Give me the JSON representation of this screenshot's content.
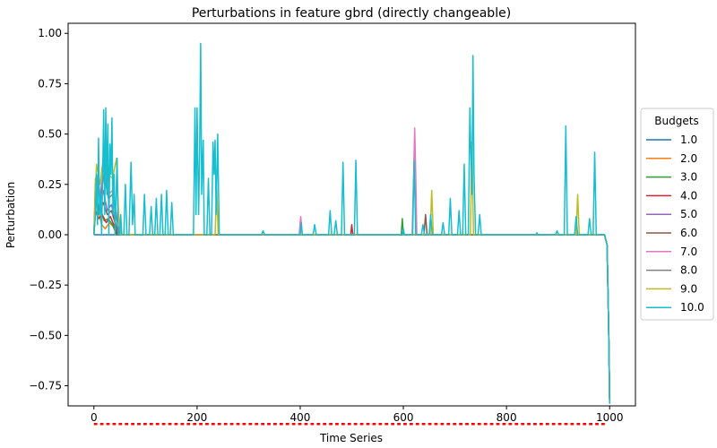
{
  "chart_data": {
    "type": "line",
    "title": "Perturbations in feature gbrd (directly changeable)",
    "xlabel": "Time Series",
    "ylabel": "Perturbation",
    "xlim": [
      -50,
      1050
    ],
    "ylim": [
      -0.85,
      1.05
    ],
    "xticks": [
      0,
      200,
      400,
      600,
      800,
      1000
    ],
    "yticks": [
      -0.75,
      -0.5,
      -0.25,
      0.0,
      0.25,
      0.5,
      0.75,
      1.0
    ],
    "ytick_labels": [
      "−0.75",
      "−0.50",
      "−0.25",
      "0.00",
      "0.25",
      "0.50",
      "0.75",
      "1.00"
    ],
    "legend": {
      "title": "Budgets",
      "placement": "outside-right"
    },
    "baseline_markers": {
      "color": "#ff0000",
      "y": -0.94,
      "x_start": 0,
      "x_end": 990,
      "step": 12
    },
    "series": [
      {
        "name": "1.0",
        "color": "#1f77b4",
        "points": [
          [
            0,
            0
          ],
          [
            990,
            0
          ],
          [
            995,
            -0.05
          ],
          [
            998,
            -0.45
          ],
          [
            1000,
            -0.82
          ]
        ]
      },
      {
        "name": "2.0",
        "color": "#ff7f0e",
        "points": [
          [
            0,
            0
          ],
          [
            3,
            0.28
          ],
          [
            8,
            0.12
          ],
          [
            15,
            0.05
          ],
          [
            22,
            0.03
          ],
          [
            30,
            0.06
          ],
          [
            38,
            0.04
          ],
          [
            45,
            0
          ],
          [
            990,
            0
          ],
          [
            995,
            -0.05
          ],
          [
            998,
            -0.45
          ],
          [
            1000,
            -0.82
          ]
        ]
      },
      {
        "name": "3.0",
        "color": "#2ca02c",
        "points": [
          [
            0,
            0
          ],
          [
            3,
            0.22
          ],
          [
            8,
            0.1
          ],
          [
            14,
            0.12
          ],
          [
            20,
            0.07
          ],
          [
            28,
            0.08
          ],
          [
            36,
            0.05
          ],
          [
            44,
            0
          ],
          [
            596,
            0
          ],
          [
            598,
            0.08
          ],
          [
            600,
            0
          ],
          [
            990,
            0
          ],
          [
            995,
            -0.05
          ],
          [
            998,
            -0.45
          ],
          [
            1000,
            -0.82
          ]
        ]
      },
      {
        "name": "4.0",
        "color": "#d62728",
        "points": [
          [
            0,
            0
          ],
          [
            3,
            0.12
          ],
          [
            9,
            0.08
          ],
          [
            16,
            0.1
          ],
          [
            24,
            0.06
          ],
          [
            32,
            0.09
          ],
          [
            40,
            0.04
          ],
          [
            46,
            0
          ],
          [
            498,
            0
          ],
          [
            500,
            0.05
          ],
          [
            502,
            0
          ],
          [
            990,
            0
          ],
          [
            995,
            -0.05
          ],
          [
            998,
            -0.45
          ],
          [
            1000,
            -0.82
          ]
        ]
      },
      {
        "name": "5.0",
        "color": "#9467bd",
        "points": [
          [
            0,
            0
          ],
          [
            4,
            0.18
          ],
          [
            10,
            0.14
          ],
          [
            18,
            0.22
          ],
          [
            26,
            0.12
          ],
          [
            34,
            0.15
          ],
          [
            42,
            0.06
          ],
          [
            48,
            0
          ],
          [
            990,
            0
          ],
          [
            995,
            -0.05
          ],
          [
            998,
            -0.45
          ],
          [
            1000,
            -0.82
          ]
        ]
      },
      {
        "name": "6.0",
        "color": "#8c564b",
        "points": [
          [
            0,
            0
          ],
          [
            4,
            0.2
          ],
          [
            10,
            0.12
          ],
          [
            18,
            0.16
          ],
          [
            26,
            0.1
          ],
          [
            34,
            0.12
          ],
          [
            42,
            0.05
          ],
          [
            48,
            0
          ],
          [
            640,
            0
          ],
          [
            643,
            0.1
          ],
          [
            646,
            0
          ],
          [
            990,
            0
          ],
          [
            995,
            -0.05
          ],
          [
            998,
            -0.45
          ],
          [
            1000,
            -0.82
          ]
        ]
      },
      {
        "name": "7.0",
        "color": "#e377c2",
        "points": [
          [
            0,
            0
          ],
          [
            5,
            0.3
          ],
          [
            12,
            0.2
          ],
          [
            20,
            0.35
          ],
          [
            28,
            0.2
          ],
          [
            36,
            0.22
          ],
          [
            44,
            0.1
          ],
          [
            50,
            0
          ],
          [
            398,
            0
          ],
          [
            401,
            0.09
          ],
          [
            404,
            0
          ],
          [
            617,
            0
          ],
          [
            620,
            0.3
          ],
          [
            622,
            0.53
          ],
          [
            624,
            0.3
          ],
          [
            626,
            0
          ],
          [
            990,
            0
          ],
          [
            995,
            -0.05
          ],
          [
            998,
            -0.45
          ],
          [
            1000,
            -0.82
          ]
        ]
      },
      {
        "name": "8.0",
        "color": "#7f7f7f",
        "points": [
          [
            0,
            0
          ],
          [
            5,
            0.25
          ],
          [
            12,
            0.18
          ],
          [
            20,
            0.3
          ],
          [
            28,
            0.18
          ],
          [
            36,
            0.2
          ],
          [
            44,
            0.08
          ],
          [
            50,
            0
          ],
          [
            990,
            0
          ],
          [
            995,
            -0.05
          ],
          [
            998,
            -0.45
          ],
          [
            1000,
            -0.82
          ]
        ]
      },
      {
        "name": "9.0",
        "color": "#bcbd22",
        "points": [
          [
            0,
            0
          ],
          [
            5,
            0.35
          ],
          [
            12,
            0.25
          ],
          [
            20,
            0.42
          ],
          [
            28,
            0.3
          ],
          [
            36,
            0.28
          ],
          [
            44,
            0.38
          ],
          [
            48,
            0.1
          ],
          [
            52,
            0
          ],
          [
            235,
            0
          ],
          [
            238,
            0.24
          ],
          [
            241,
            0
          ],
          [
            652,
            0
          ],
          [
            655,
            0.22
          ],
          [
            658,
            0
          ],
          [
            730,
            0
          ],
          [
            733,
            0.46
          ],
          [
            736,
            0
          ],
          [
            935,
            0
          ],
          [
            938,
            0.2
          ],
          [
            941,
            0
          ],
          [
            990,
            0
          ],
          [
            995,
            -0.05
          ],
          [
            998,
            -0.45
          ],
          [
            1000,
            -0.82
          ]
        ]
      },
      {
        "name": "10.0",
        "color": "#17becf",
        "points": [
          [
            0,
            0
          ],
          [
            3,
            0.1
          ],
          [
            5,
            0.3
          ],
          [
            7,
            0.05
          ],
          [
            9,
            0.48
          ],
          [
            11,
            0.1
          ],
          [
            13,
            0.2
          ],
          [
            15,
            0
          ],
          [
            17,
            0.3
          ],
          [
            19,
            0.62
          ],
          [
            21,
            0.1
          ],
          [
            23,
            0.63
          ],
          [
            25,
            0.2
          ],
          [
            27,
            0.55
          ],
          [
            29,
            0
          ],
          [
            31,
            0.45
          ],
          [
            33,
            0.3
          ],
          [
            35,
            0.58
          ],
          [
            37,
            0.1
          ],
          [
            39,
            0.3
          ],
          [
            41,
            0
          ],
          [
            43,
            0.2
          ],
          [
            45,
            0.38
          ],
          [
            47,
            0
          ],
          [
            50,
            0
          ],
          [
            52,
            0.1
          ],
          [
            54,
            0
          ],
          [
            58,
            0
          ],
          [
            61,
            0.25
          ],
          [
            64,
            0
          ],
          [
            68,
            0
          ],
          [
            72,
            0.36
          ],
          [
            75,
            0.05
          ],
          [
            78,
            0.2
          ],
          [
            80,
            0
          ],
          [
            95,
            0
          ],
          [
            98,
            0.2
          ],
          [
            101,
            0
          ],
          [
            108,
            0
          ],
          [
            111,
            0.14
          ],
          [
            114,
            0
          ],
          [
            118,
            0
          ],
          [
            121,
            0.18
          ],
          [
            124,
            0
          ],
          [
            128,
            0
          ],
          [
            131,
            0.2
          ],
          [
            134,
            0
          ],
          [
            138,
            0
          ],
          [
            141,
            0.22
          ],
          [
            144,
            0
          ],
          [
            148,
            0
          ],
          [
            151,
            0.16
          ],
          [
            154,
            0
          ],
          [
            193,
            0
          ],
          [
            196,
            0.63
          ],
          [
            198,
            0.1
          ],
          [
            200,
            0.63
          ],
          [
            203,
            0.1
          ],
          [
            205,
            0.4
          ],
          [
            207,
            0.95
          ],
          [
            209,
            0.2
          ],
          [
            212,
            0.47
          ],
          [
            214,
            0
          ],
          [
            219,
            0
          ],
          [
            222,
            0.28
          ],
          [
            225,
            0
          ],
          [
            228,
            0
          ],
          [
            231,
            0.46
          ],
          [
            233,
            0.3
          ],
          [
            235,
            0.47
          ],
          [
            237,
            0.1
          ],
          [
            240,
            0.5
          ],
          [
            243,
            0
          ],
          [
            325,
            0
          ],
          [
            328,
            0.02
          ],
          [
            331,
            0
          ],
          [
            400,
            0
          ],
          [
            402,
            0.06
          ],
          [
            404,
            0
          ],
          [
            425,
            0
          ],
          [
            428,
            0.05
          ],
          [
            431,
            0
          ],
          [
            455,
            0
          ],
          [
            458,
            0.12
          ],
          [
            461,
            0
          ],
          [
            466,
            0
          ],
          [
            469,
            0.07
          ],
          [
            472,
            0
          ],
          [
            480,
            0
          ],
          [
            483,
            0.36
          ],
          [
            486,
            0
          ],
          [
            505,
            0
          ],
          [
            508,
            0.37
          ],
          [
            511,
            0
          ],
          [
            598,
            0
          ],
          [
            600,
            0.03
          ],
          [
            602,
            0
          ],
          [
            618,
            0
          ],
          [
            621,
            0.37
          ],
          [
            624,
            0
          ],
          [
            635,
            0
          ],
          [
            638,
            0.05
          ],
          [
            641,
            0
          ],
          [
            650,
            0
          ],
          [
            653,
            0.1
          ],
          [
            656,
            0
          ],
          [
            674,
            0
          ],
          [
            677,
            0.06
          ],
          [
            680,
            0
          ],
          [
            688,
            0
          ],
          [
            691,
            0.18
          ],
          [
            694,
            0
          ],
          [
            705,
            0
          ],
          [
            708,
            0.12
          ],
          [
            711,
            0
          ],
          [
            715,
            0
          ],
          [
            718,
            0.35
          ],
          [
            721,
            0
          ],
          [
            726,
            0
          ],
          [
            729,
            0.63
          ],
          [
            731,
            0.4
          ],
          [
            733,
            0.2
          ],
          [
            735,
            0.89
          ],
          [
            737,
            0.3
          ],
          [
            740,
            0
          ],
          [
            745,
            0
          ],
          [
            748,
            0.1
          ],
          [
            751,
            0
          ],
          [
            857,
            0
          ],
          [
            859,
            0.01
          ],
          [
            861,
            0
          ],
          [
            895,
            0
          ],
          [
            898,
            0.02
          ],
          [
            901,
            0
          ],
          [
            912,
            0
          ],
          [
            915,
            0.54
          ],
          [
            918,
            0
          ],
          [
            932,
            0
          ],
          [
            935,
            0.09
          ],
          [
            938,
            0
          ],
          [
            958,
            0
          ],
          [
            961,
            0.08
          ],
          [
            964,
            0
          ],
          [
            968,
            0
          ],
          [
            971,
            0.41
          ],
          [
            974,
            0
          ],
          [
            990,
            0
          ],
          [
            995,
            -0.05
          ],
          [
            998,
            -0.45
          ],
          [
            1000,
            -0.84
          ]
        ]
      }
    ]
  }
}
